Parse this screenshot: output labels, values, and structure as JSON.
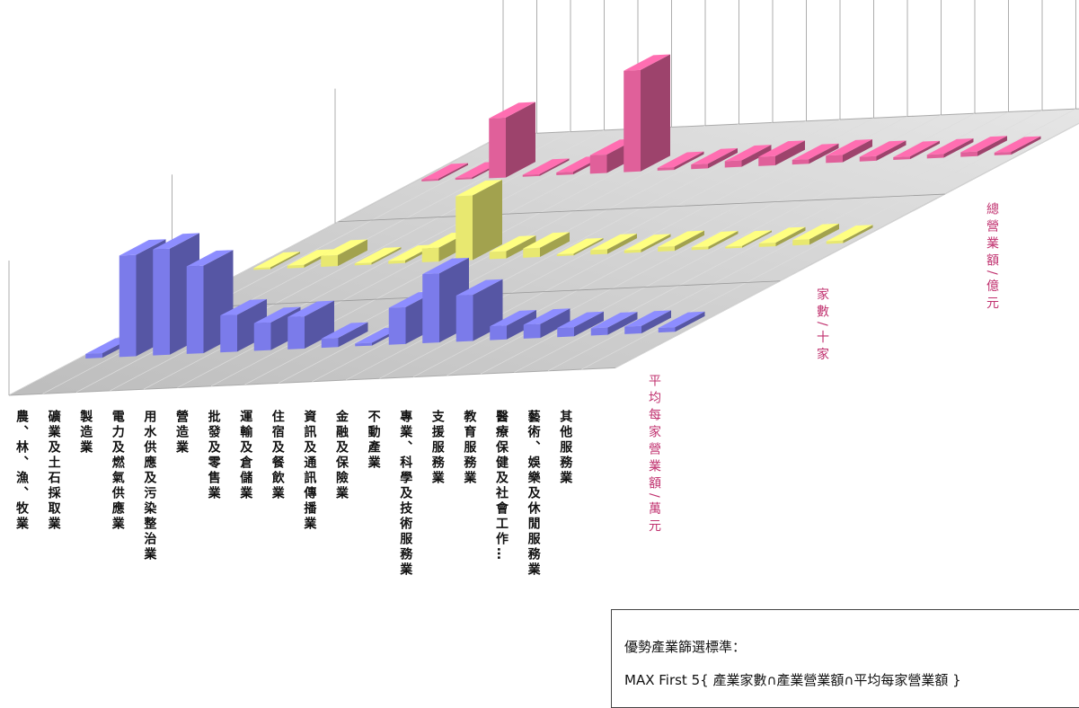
{
  "chart_data": {
    "type": "bar3d",
    "categories": [
      "農、林、漁、牧業",
      "礦業及土石採取業",
      "製造業",
      "電力及燃氣供應業",
      "用水供應及污染整治業",
      "營造業",
      "批發及零售業",
      "運輸及倉儲業",
      "住宿及餐飲業",
      "資訊及通訊傳播業",
      "金融及保險業",
      "不動產業",
      "專業、科學及技術服務業",
      "支援服務業",
      "教育服務業",
      "醫療保健及社會工作…",
      "藝術、娛樂及休閒服務業",
      "其他服務業"
    ],
    "series": [
      {
        "name": "平均每家營業額/萬元",
        "color": "#7b7bea",
        "values": [
          5,
          110,
          115,
          95,
          40,
          30,
          35,
          10,
          3,
          40,
          75,
          50,
          15,
          15,
          10,
          8,
          8,
          5
        ]
      },
      {
        "name": "家數/十家",
        "color": "#e8e870",
        "values": [
          2,
          3,
          12,
          2,
          3,
          15,
          70,
          8,
          10,
          2,
          5,
          3,
          5,
          3,
          2,
          4,
          6,
          3
        ]
      },
      {
        "name": "總營業額/億元",
        "color": "#e0609a",
        "values": [
          2,
          2,
          65,
          2,
          3,
          20,
          110,
          3,
          5,
          7,
          10,
          5,
          8,
          5,
          3,
          4,
          5,
          3
        ]
      }
    ]
  },
  "note": {
    "title": "優勢產業篩選標準：",
    "formula": "MAX First 5{ 產業家數∩產業營業額∩平均每家營業額 }"
  }
}
